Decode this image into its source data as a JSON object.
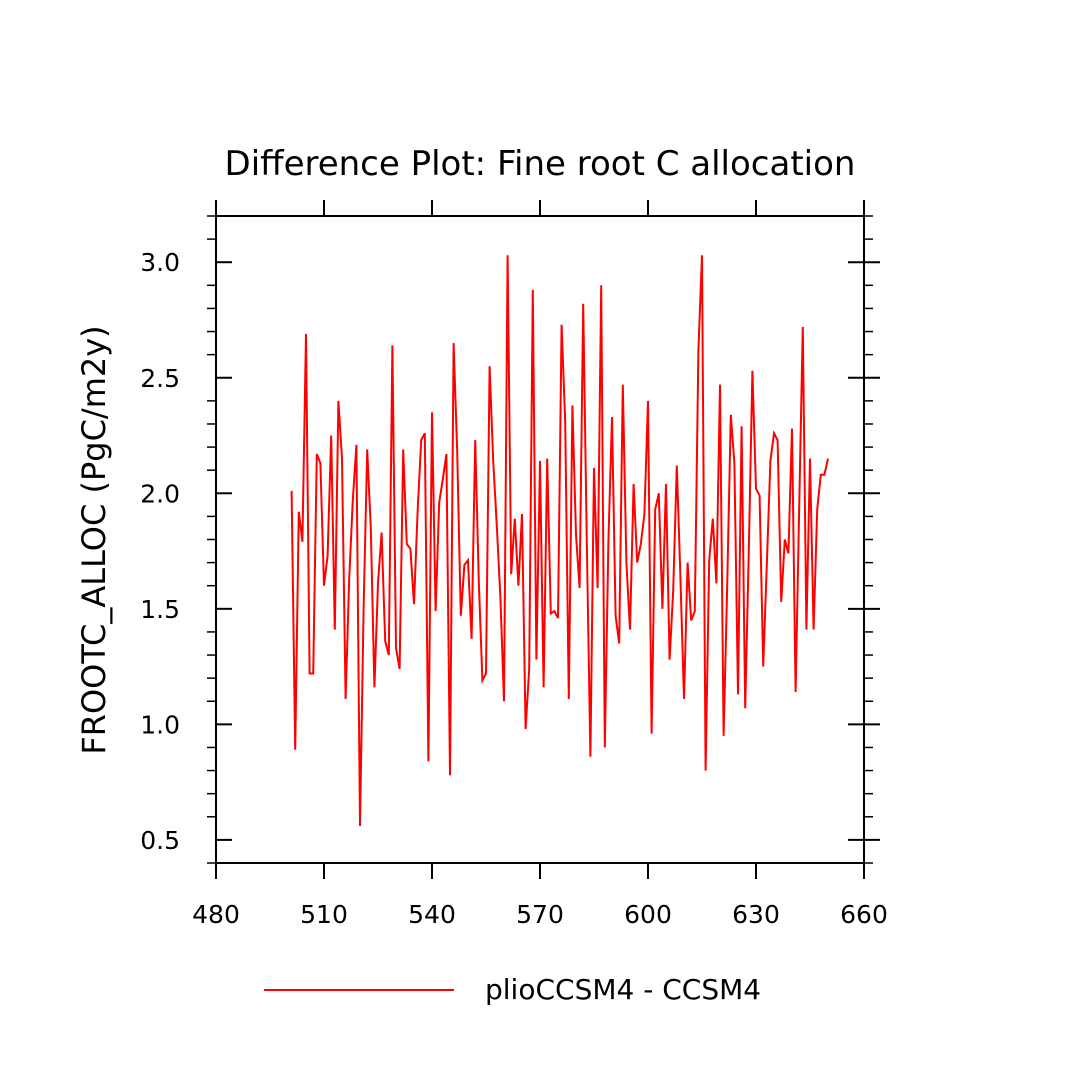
{
  "chart_data": {
    "type": "line",
    "title": "Difference Plot: Fine root C allocation",
    "xlabel": "",
    "ylabel": "FROOTC_ALLOC  (PgC/m2y)",
    "xlim": [
      480,
      660
    ],
    "ylim": [
      0.4,
      3.2
    ],
    "xticks": [
      480,
      510,
      540,
      570,
      600,
      630,
      660
    ],
    "xtick_labels": [
      "480",
      "510",
      "540",
      "570",
      "600",
      "630",
      "660"
    ],
    "yticks": [
      0.5,
      1.0,
      1.5,
      2.0,
      2.5,
      3.0
    ],
    "ytick_labels": [
      "0.5",
      "1.0",
      "1.5",
      "2.0",
      "2.5",
      "3.0"
    ],
    "grid": false,
    "legend_position": "bottom",
    "series": [
      {
        "name": "plioCCSM4 - CCSM4",
        "color": "#ff0000",
        "x_start": 501,
        "x_step": 1,
        "values": [
          2.01,
          0.89,
          1.92,
          1.79,
          2.69,
          1.22,
          1.22,
          2.17,
          2.13,
          1.6,
          1.73,
          2.25,
          1.41,
          2.4,
          2.15,
          1.11,
          1.63,
          1.97,
          2.21,
          0.56,
          1.5,
          2.19,
          1.85,
          1.16,
          1.61,
          1.83,
          1.36,
          1.3,
          2.64,
          1.33,
          1.24,
          2.19,
          1.78,
          1.76,
          1.52,
          1.92,
          2.23,
          2.26,
          0.84,
          2.35,
          1.49,
          1.96,
          2.06,
          2.17,
          0.78,
          2.65,
          2.18,
          1.47,
          1.69,
          1.71,
          1.37,
          2.23,
          1.62,
          1.19,
          1.22,
          2.55,
          2.14,
          1.86,
          1.55,
          1.1,
          3.03,
          1.65,
          1.89,
          1.6,
          1.91,
          0.98,
          1.24,
          2.88,
          1.28,
          2.14,
          1.16,
          2.15,
          1.48,
          1.49,
          1.46,
          2.73,
          2.31,
          1.11,
          2.38,
          1.82,
          1.59,
          2.82,
          1.79,
          0.86,
          2.11,
          1.59,
          2.9,
          0.9,
          1.79,
          2.33,
          1.47,
          1.35,
          2.47,
          1.7,
          1.41,
          2.04,
          1.7,
          1.78,
          1.91,
          2.4,
          0.96,
          1.93,
          2.0,
          1.5,
          2.04,
          1.28,
          1.58,
          2.12,
          1.64,
          1.11,
          1.7,
          1.45,
          1.49,
          2.62,
          3.03,
          0.8,
          1.71,
          1.89,
          1.61,
          2.47,
          0.95,
          1.6,
          2.34,
          2.13,
          1.13,
          2.29,
          1.07,
          1.75,
          2.53,
          2.02,
          1.99,
          1.25,
          1.69,
          2.14,
          2.26,
          2.23,
          1.53,
          1.8,
          1.74,
          2.28,
          1.14,
          1.94,
          2.72,
          1.41,
          2.15,
          1.41,
          1.93,
          2.08,
          2.08,
          2.15
        ]
      }
    ]
  }
}
